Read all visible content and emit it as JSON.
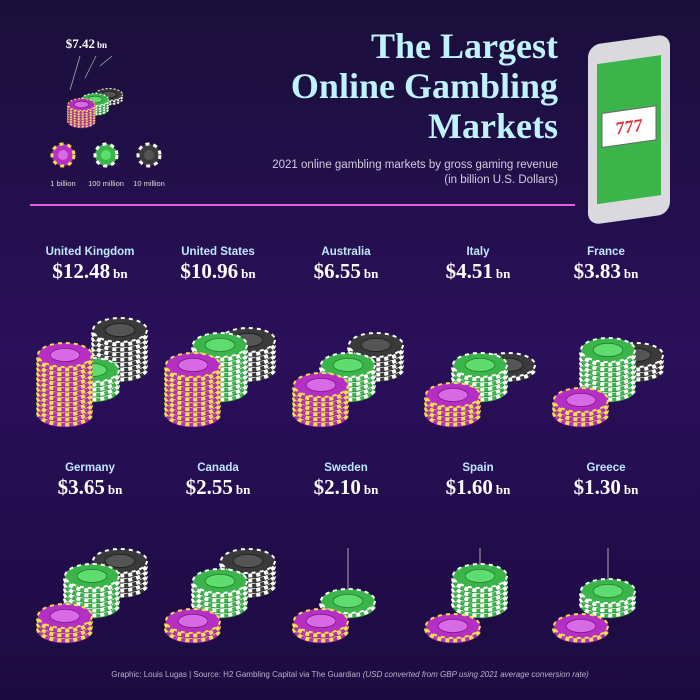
{
  "chart_data": {
    "type": "chip-stacks",
    "title": [
      "The Largest",
      "Online Gambling",
      "Markets"
    ],
    "subtitle": [
      "2021 online gambling markets by gross gaming revenue",
      "(in billion U.S. Dollars)"
    ],
    "unit": "bn",
    "legend": {
      "example_value": 7.42,
      "example_label": "$7.42",
      "chips": [
        {
          "value": 1,
          "label": "1 billion",
          "color": "#b62fc4"
        },
        {
          "value": 0.1,
          "label": "100 million",
          "color": "#3bb54a"
        },
        {
          "value": 0.01,
          "label": "10 million",
          "color": "#3a3a3c"
        }
      ]
    },
    "categories": [
      "United Kingdom",
      "United States",
      "Australia",
      "Italy",
      "France",
      "Germany",
      "Canada",
      "Sweden",
      "Spain",
      "Greece"
    ],
    "values": [
      12.48,
      10.96,
      6.55,
      4.51,
      3.83,
      3.65,
      2.55,
      2.1,
      1.6,
      1.3
    ],
    "value_labels": [
      "$12.48",
      "$10.96",
      "$6.55",
      "$4.51",
      "$3.83",
      "$3.65",
      "$2.55",
      "$2.10",
      "$1.60",
      "$1.30"
    ],
    "footer": {
      "credit": "Graphic: Louis Lugas",
      "source": "Source: H2 Gambling Capital via The Guardian",
      "note": "(USD converted from GBP using 2021 average conversion rate)"
    }
  }
}
